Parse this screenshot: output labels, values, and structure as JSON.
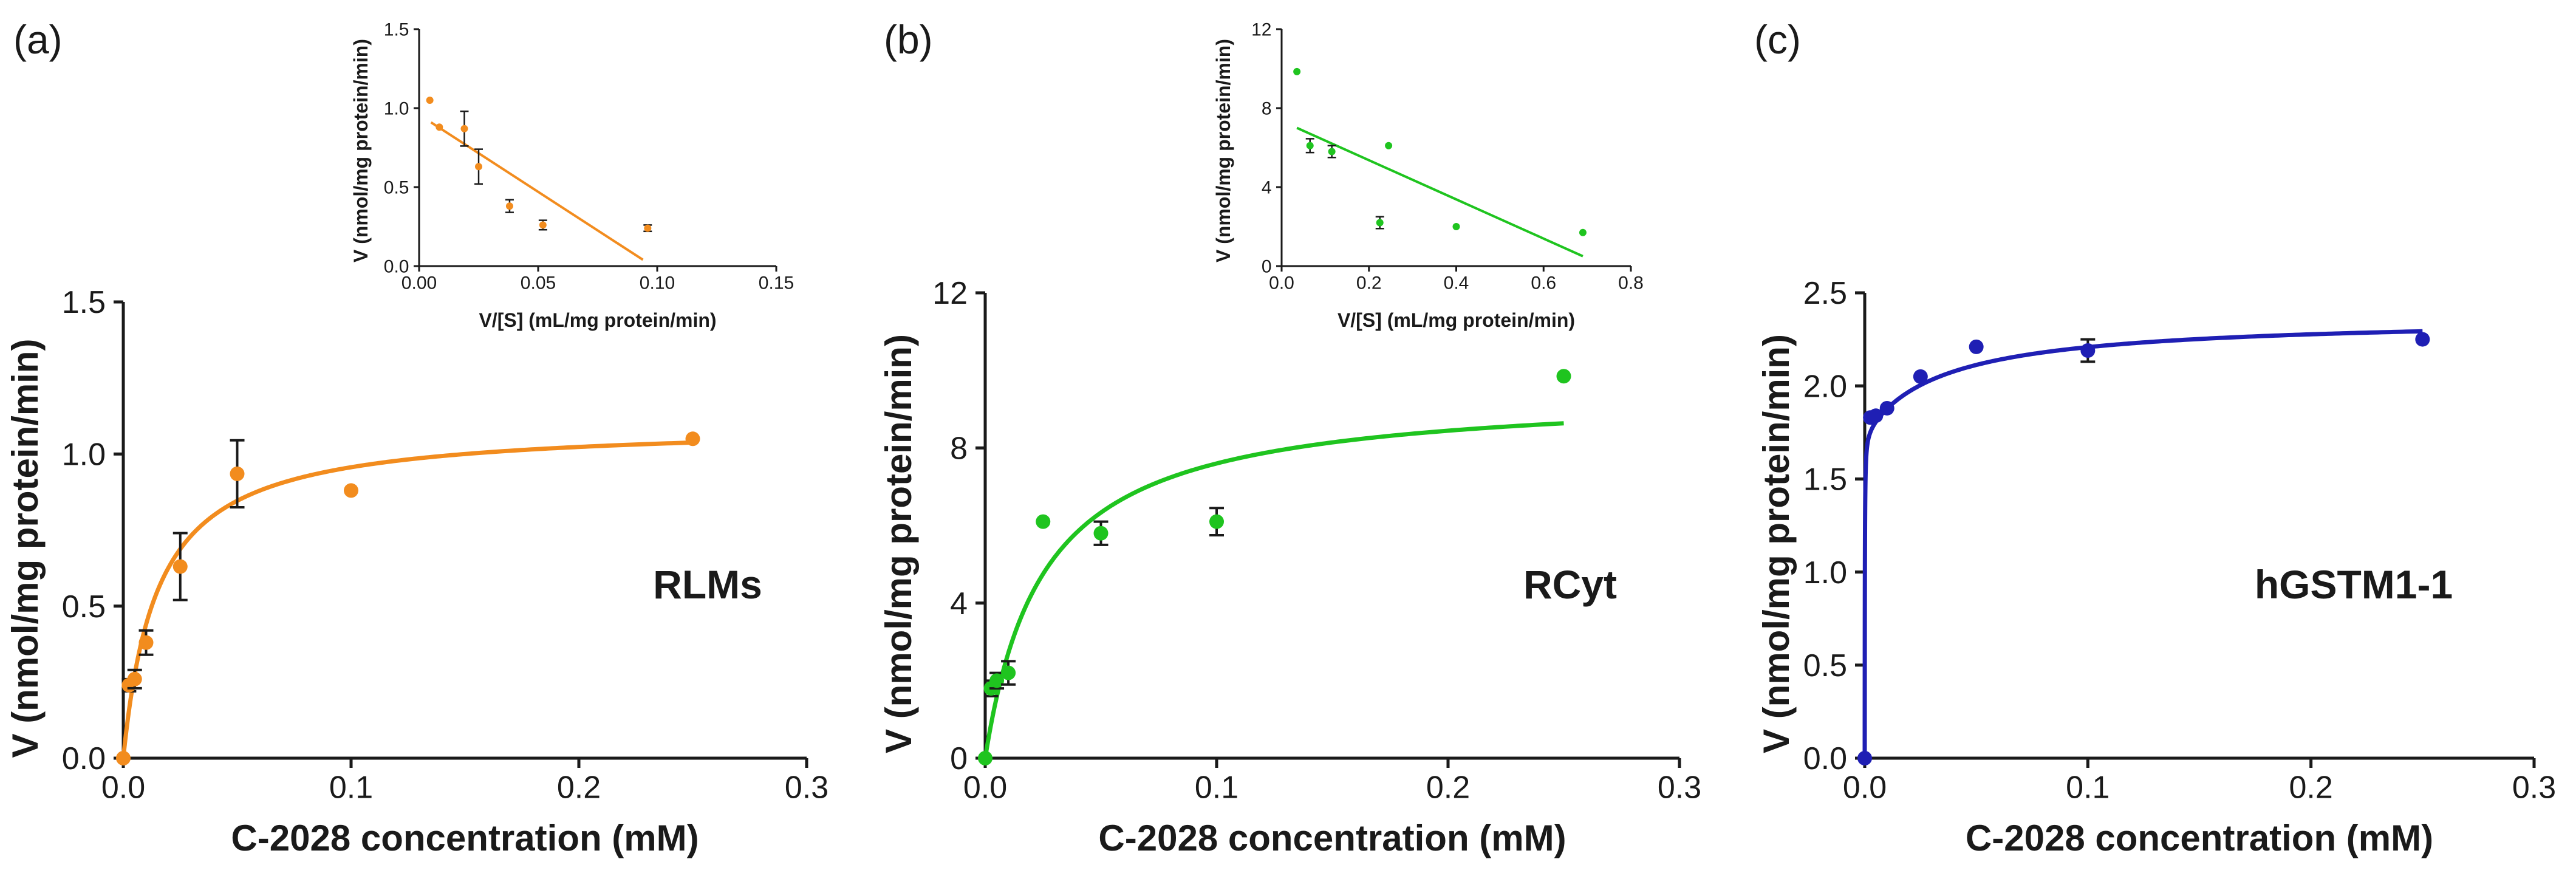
{
  "chart_data": [
    {
      "type": "scatter",
      "panel": "a",
      "panel_label": "(a)",
      "sample_label": "RLMs",
      "color": "#F28C1E",
      "xlabel": "C-2028 concentration (mM)",
      "ylabel": "V (nmol/mg protein/min)",
      "xlim": [
        0,
        0.3
      ],
      "ylim": [
        0,
        1.5
      ],
      "x_ticks": [
        0,
        0.1,
        0.2,
        0.3
      ],
      "x_tick_labels": [
        "0.0",
        "0.1",
        "0.2",
        "0.3"
      ],
      "y_ticks": [
        0,
        0.5,
        1.0,
        1.5
      ],
      "y_tick_labels": [
        "0.0",
        "0.5",
        "1.0",
        "1.5"
      ],
      "points": [
        {
          "x": 0,
          "y": 0,
          "err": 0
        },
        {
          "x": 0.0025,
          "y": 0.24,
          "err": 0.02
        },
        {
          "x": 0.005,
          "y": 0.26,
          "err": 0.03
        },
        {
          "x": 0.01,
          "y": 0.38,
          "err": 0.04
        },
        {
          "x": 0.025,
          "y": 0.63,
          "err": 0.11
        },
        {
          "x": 0.05,
          "y": 0.935,
          "err": 0.11
        },
        {
          "x": 0.1,
          "y": 0.88,
          "err": 0
        },
        {
          "x": 0.25,
          "y": 1.05,
          "err": 0
        }
      ],
      "fit": {
        "model": "michaelis-menten",
        "vmax": 1.1,
        "km": 0.015,
        "x_range": [
          0,
          0.25
        ]
      },
      "inset": {
        "type": "scatter",
        "xlabel": "V/[S] (mL/mg protein/min)",
        "ylabel": "V (nmol/mg protein/min)",
        "xlim": [
          0,
          0.15
        ],
        "ylim": [
          0,
          1.5
        ],
        "x_ticks": [
          0,
          0.05,
          0.1,
          0.15
        ],
        "x_tick_labels": [
          "0.00",
          "0.05",
          "0.10",
          "0.15"
        ],
        "y_ticks": [
          0,
          0.5,
          1.0,
          1.5
        ],
        "y_tick_labels": [
          "0.0",
          "0.5",
          "1.0",
          "1.5"
        ],
        "points": [
          {
            "x": 0.0045,
            "y": 1.05,
            "err": 0
          },
          {
            "x": 0.0085,
            "y": 0.88,
            "err": 0
          },
          {
            "x": 0.019,
            "y": 0.87,
            "err": 0.11
          },
          {
            "x": 0.025,
            "y": 0.63,
            "err": 0.11
          },
          {
            "x": 0.038,
            "y": 0.38,
            "err": 0.04
          },
          {
            "x": 0.052,
            "y": 0.26,
            "err": 0.03
          },
          {
            "x": 0.096,
            "y": 0.24,
            "err": 0.02
          }
        ],
        "fit_line": {
          "x": [
            0.005,
            0.094
          ],
          "y": [
            0.91,
            0.04
          ]
        }
      }
    },
    {
      "type": "scatter",
      "panel": "b",
      "panel_label": "(b)",
      "sample_label": "RCyt",
      "color": "#1FC41F",
      "xlabel": "C-2028 concentration (mM)",
      "ylabel": "V (nmol/mg protein/min)",
      "xlim": [
        0,
        0.3
      ],
      "ylim": [
        0,
        12
      ],
      "x_ticks": [
        0,
        0.1,
        0.2,
        0.3
      ],
      "x_tick_labels": [
        "0.0",
        "0.1",
        "0.2",
        "0.3"
      ],
      "y_ticks": [
        0,
        4,
        8,
        12
      ],
      "y_tick_labels": [
        "0",
        "4",
        "8",
        "12"
      ],
      "points": [
        {
          "x": 0,
          "y": 0,
          "err": 0
        },
        {
          "x": 0.0025,
          "y": 1.8,
          "err": 0.2
        },
        {
          "x": 0.005,
          "y": 2.0,
          "err": 0.2
        },
        {
          "x": 0.01,
          "y": 2.2,
          "err": 0.3
        },
        {
          "x": 0.025,
          "y": 6.1,
          "err": 0
        },
        {
          "x": 0.05,
          "y": 5.8,
          "err": 0.3
        },
        {
          "x": 0.1,
          "y": 6.1,
          "err": 0.35
        },
        {
          "x": 0.25,
          "y": 9.85,
          "err": 0
        }
      ],
      "fit": {
        "model": "michaelis-menten",
        "vmax": 9.5,
        "km": 0.025,
        "x_range": [
          0,
          0.25
        ]
      },
      "inset": {
        "type": "scatter",
        "xlabel": "V/[S] (mL/mg protein/min)",
        "ylabel": "V (nmol/mg protein/min)",
        "xlim": [
          0,
          0.8
        ],
        "ylim": [
          0,
          12
        ],
        "x_ticks": [
          0,
          0.2,
          0.4,
          0.6,
          0.8
        ],
        "x_tick_labels": [
          "0.0",
          "0.2",
          "0.4",
          "0.6",
          "0.8"
        ],
        "y_ticks": [
          0,
          4,
          8,
          12
        ],
        "y_tick_labels": [
          "0",
          "4",
          "8",
          "12"
        ],
        "points": [
          {
            "x": 0.035,
            "y": 9.85,
            "err": 0
          },
          {
            "x": 0.065,
            "y": 6.1,
            "err": 0.35
          },
          {
            "x": 0.115,
            "y": 5.8,
            "err": 0.3
          },
          {
            "x": 0.225,
            "y": 2.2,
            "err": 0.3
          },
          {
            "x": 0.245,
            "y": 6.1,
            "err": 0
          },
          {
            "x": 0.4,
            "y": 2.0,
            "err": 0
          },
          {
            "x": 0.69,
            "y": 1.7,
            "err": 0
          }
        ],
        "fit_line": {
          "x": [
            0.035,
            0.69
          ],
          "y": [
            7.0,
            0.5
          ]
        }
      }
    },
    {
      "type": "scatter",
      "panel": "c",
      "panel_label": "(c)",
      "sample_label": "hGSTM1-1",
      "color": "#1F1FB4",
      "xlabel": "C-2028 concentration (mM)",
      "ylabel": "V (nmol/mg protein/min)",
      "xlim": [
        0,
        0.3
      ],
      "ylim": [
        0,
        2.5
      ],
      "x_ticks": [
        0,
        0.1,
        0.2,
        0.3
      ],
      "x_tick_labels": [
        "0.0",
        "0.1",
        "0.2",
        "0.3"
      ],
      "y_ticks": [
        0,
        0.5,
        1.0,
        1.5,
        2.0,
        2.5
      ],
      "y_tick_labels": [
        "0.0",
        "0.5",
        "1.0",
        "1.5",
        "2.0",
        "2.5"
      ],
      "points": [
        {
          "x": 0,
          "y": 0,
          "err": 0
        },
        {
          "x": 0.0025,
          "y": 1.83,
          "err": 0
        },
        {
          "x": 0.005,
          "y": 1.84,
          "err": 0
        },
        {
          "x": 0.01,
          "y": 1.88,
          "err": 0
        },
        {
          "x": 0.025,
          "y": 2.05,
          "err": 0
        },
        {
          "x": 0.05,
          "y": 2.21,
          "err": 0
        },
        {
          "x": 0.1,
          "y": 2.19,
          "err": 0.06
        },
        {
          "x": 0.25,
          "y": 2.25,
          "err": 0
        }
      ],
      "fit": {
        "model": "two-site",
        "vmax1": 1.75,
        "km1": 6e-05,
        "vmax2": 0.62,
        "km2": 0.035,
        "x_range": [
          0,
          0.25
        ]
      }
    }
  ]
}
